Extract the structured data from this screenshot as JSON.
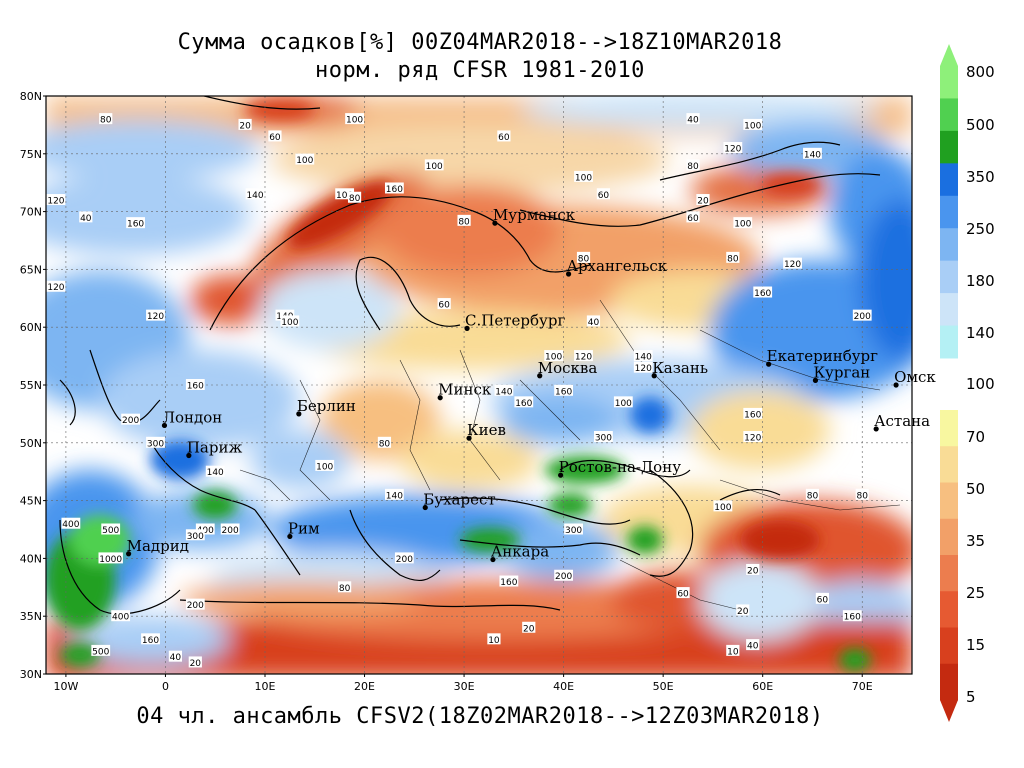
{
  "title": {
    "line1": "Сумма осадков[%] 00Z04MAR2018-->18Z10MAR2018",
    "line2": "норм. ряд CFSR 1981-2010"
  },
  "footer": "04 чл. ансамбль CFSV2(18Z02MAR2018-->12Z03MAR2018)",
  "axes": {
    "lat_ticks": [
      "80N",
      "75N",
      "70N",
      "65N",
      "60N",
      "55N",
      "50N",
      "45N",
      "40N",
      "35N",
      "30N"
    ],
    "lon_ticks": [
      "10W",
      "0",
      "10E",
      "20E",
      "30E",
      "40E",
      "50E",
      "60E",
      "70E"
    ],
    "lon_range": [
      -12,
      75
    ],
    "lat_range": [
      30,
      80
    ]
  },
  "colorbar": {
    "labels": [
      "800",
      "500",
      "350",
      "250",
      "180",
      "140",
      "100",
      "70",
      "50",
      "35",
      "25",
      "15",
      "5"
    ],
    "colors_upper": [
      "#8ef07a",
      "#50d050",
      "#20a020",
      "#1a6fe0",
      "#4a95ee",
      "#7db5f2",
      "#a9cef6",
      "#cde4f8",
      "#b4f0f4"
    ],
    "colors_lower": [
      "#f8f7a0",
      "#f9dc96",
      "#f7bf80",
      "#f2a068",
      "#ec7d4e",
      "#e65a32",
      "#d8401e",
      "#c42a10"
    ]
  },
  "cities": [
    {
      "name": "Мурманск",
      "lon": 33.1,
      "lat": 69.0
    },
    {
      "name": "Архангельск",
      "lon": 40.5,
      "lat": 64.6
    },
    {
      "name": "С.Петербург",
      "lon": 30.3,
      "lat": 59.9
    },
    {
      "name": "Екатеринбург",
      "lon": 60.6,
      "lat": 56.8
    },
    {
      "name": "Москва",
      "lon": 37.6,
      "lat": 55.8
    },
    {
      "name": "Казань",
      "lon": 49.1,
      "lat": 55.8
    },
    {
      "name": "Курган",
      "lon": 65.3,
      "lat": 55.4
    },
    {
      "name": "Минск",
      "lon": 27.6,
      "lat": 53.9
    },
    {
      "name": "Омск",
      "lon": 73.4,
      "lat": 55.0
    },
    {
      "name": "Лондон",
      "lon": -0.1,
      "lat": 51.5
    },
    {
      "name": "Берлин",
      "lon": 13.4,
      "lat": 52.5
    },
    {
      "name": "Киев",
      "lon": 30.5,
      "lat": 50.4
    },
    {
      "name": "Астана",
      "lon": 71.4,
      "lat": 51.2
    },
    {
      "name": "Париж",
      "lon": 2.35,
      "lat": 48.9
    },
    {
      "name": "Ростов-на-Дону",
      "lon": 39.7,
      "lat": 47.2
    },
    {
      "name": "Бухарест",
      "lon": 26.1,
      "lat": 44.4
    },
    {
      "name": "Рим",
      "lon": 12.5,
      "lat": 41.9
    },
    {
      "name": "Мадрид",
      "lon": -3.7,
      "lat": 40.4
    },
    {
      "name": "Анкара",
      "lon": 32.9,
      "lat": 39.9
    }
  ],
  "contour_labels": [
    {
      "t": "80",
      "lon": -6,
      "lat": 78
    },
    {
      "t": "20",
      "lon": 8,
      "lat": 77.5
    },
    {
      "t": "60",
      "lon": 11,
      "lat": 76.5
    },
    {
      "t": "100",
      "lon": 19,
      "lat": 78
    },
    {
      "t": "60",
      "lon": 34,
      "lat": 76.5
    },
    {
      "t": "40",
      "lon": 53,
      "lat": 78
    },
    {
      "t": "100",
      "lon": 59,
      "lat": 77.5
    },
    {
      "t": "120",
      "lon": 57,
      "lat": 75.5
    },
    {
      "t": "140",
      "lon": 65,
      "lat": 75
    },
    {
      "t": "100",
      "lon": 14,
      "lat": 74.5
    },
    {
      "t": "160",
      "lon": 23,
      "lat": 72
    },
    {
      "t": "100",
      "lon": 27,
      "lat": 74
    },
    {
      "t": "80",
      "lon": 53,
      "lat": 74
    },
    {
      "t": "60",
      "lon": 44,
      "lat": 71.5
    },
    {
      "t": "100",
      "lon": 42,
      "lat": 73
    },
    {
      "t": "20",
      "lon": 54,
      "lat": 71
    },
    {
      "t": "140",
      "lon": 9,
      "lat": 71.5
    },
    {
      "t": "100",
      "lon": 18,
      "lat": 71.5
    },
    {
      "t": "80",
      "lon": 19,
      "lat": 71.2
    },
    {
      "t": "120",
      "lon": -11,
      "lat": 71
    },
    {
      "t": "40",
      "lon": -8,
      "lat": 69.5
    },
    {
      "t": "160",
      "lon": -3,
      "lat": 69
    },
    {
      "t": "80",
      "lon": 30,
      "lat": 69.2
    },
    {
      "t": "60",
      "lon": 53,
      "lat": 69.5
    },
    {
      "t": "100",
      "lon": 58,
      "lat": 69
    },
    {
      "t": "80",
      "lon": 57,
      "lat": 66
    },
    {
      "t": "120",
      "lon": 63,
      "lat": 65.5
    },
    {
      "t": "80",
      "lon": 42,
      "lat": 66
    },
    {
      "t": "60",
      "lon": 28,
      "lat": 62
    },
    {
      "t": "40",
      "lon": 43,
      "lat": 60.5
    },
    {
      "t": "160",
      "lon": 60,
      "lat": 63
    },
    {
      "t": "200",
      "lon": 70,
      "lat": 61
    },
    {
      "t": "120",
      "lon": -11,
      "lat": 63.5
    },
    {
      "t": "140",
      "lon": 12,
      "lat": 61
    },
    {
      "t": "100",
      "lon": 12.5,
      "lat": 60.5
    },
    {
      "t": "120",
      "lon": -1,
      "lat": 61
    },
    {
      "t": "100",
      "lon": 39,
      "lat": 57.5
    },
    {
      "t": "120",
      "lon": 42,
      "lat": 57.5
    },
    {
      "t": "140",
      "lon": 48,
      "lat": 57.5
    },
    {
      "t": "120",
      "lon": 48,
      "lat": 56.5
    },
    {
      "t": "160",
      "lon": 3,
      "lat": 55
    },
    {
      "t": "140",
      "lon": 34,
      "lat": 54.5
    },
    {
      "t": "160",
      "lon": 40,
      "lat": 54.5
    },
    {
      "t": "160",
      "lon": 36,
      "lat": 53.5
    },
    {
      "t": "100",
      "lon": 46,
      "lat": 53.5
    },
    {
      "t": "160",
      "lon": 59,
      "lat": 52.5
    },
    {
      "t": "200",
      "lon": -3.5,
      "lat": 52
    },
    {
      "t": "120",
      "lon": 59,
      "lat": 50.5
    },
    {
      "t": "300",
      "lon": -1,
      "lat": 50
    },
    {
      "t": "300",
      "lon": 44,
      "lat": 50.5
    },
    {
      "t": "80",
      "lon": 22,
      "lat": 50
    },
    {
      "t": "140",
      "lon": 5,
      "lat": 47.5
    },
    {
      "t": "100",
      "lon": 16,
      "lat": 48
    },
    {
      "t": "140",
      "lon": 23,
      "lat": 45.5
    },
    {
      "t": "100",
      "lon": 56,
      "lat": 44.5
    },
    {
      "t": "80",
      "lon": 65,
      "lat": 45.5
    },
    {
      "t": "80",
      "lon": 70,
      "lat": 45.5
    },
    {
      "t": "400",
      "lon": -9.5,
      "lat": 43
    },
    {
      "t": "500",
      "lon": -5.5,
      "lat": 42.5
    },
    {
      "t": "400",
      "lon": 4,
      "lat": 42.5
    },
    {
      "t": "200",
      "lon": 6.5,
      "lat": 42.5
    },
    {
      "t": "300",
      "lon": 3,
      "lat": 42
    },
    {
      "t": "300",
      "lon": 41,
      "lat": 42.5
    },
    {
      "t": "200",
      "lon": 24,
      "lat": 40
    },
    {
      "t": "1000",
      "lon": -5.5,
      "lat": 40
    },
    {
      "t": "200",
      "lon": 40,
      "lat": 38.5
    },
    {
      "t": "160",
      "lon": 34.5,
      "lat": 38
    },
    {
      "t": "80",
      "lon": 18,
      "lat": 37.5
    },
    {
      "t": "200",
      "lon": 3,
      "lat": 36
    },
    {
      "t": "20",
      "lon": 59,
      "lat": 39
    },
    {
      "t": "60",
      "lon": 52,
      "lat": 37
    },
    {
      "t": "400",
      "lon": -4.5,
      "lat": 35
    },
    {
      "t": "160",
      "lon": -1.5,
      "lat": 33
    },
    {
      "t": "500",
      "lon": -6.5,
      "lat": 32
    },
    {
      "t": "40",
      "lon": 1,
      "lat": 31.5
    },
    {
      "t": "20",
      "lon": 3,
      "lat": 31
    },
    {
      "t": "10",
      "lon": 33,
      "lat": 33
    },
    {
      "t": "20",
      "lon": 36.5,
      "lat": 34
    },
    {
      "t": "10",
      "lon": 57,
      "lat": 32
    },
    {
      "t": "40",
      "lon": 59,
      "lat": 32.5
    },
    {
      "t": "60",
      "lon": 66,
      "lat": 36.5
    },
    {
      "t": "160",
      "lon": 69,
      "lat": 35
    },
    {
      "t": "20",
      "lon": 58,
      "lat": 35.5
    }
  ]
}
